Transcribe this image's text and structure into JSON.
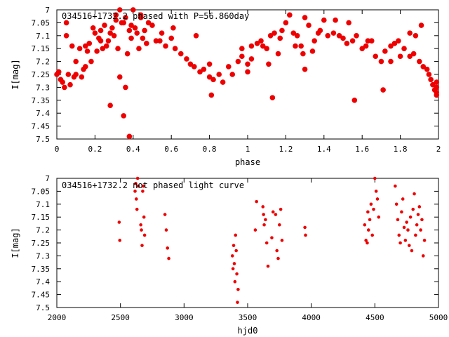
{
  "colors": {
    "points": "#ee0000",
    "axes": "#000000",
    "background": "#ffffff"
  },
  "chart_data": [
    {
      "type": "scatter",
      "title": "034516+1732.2 phased with P=56.860day",
      "xlabel": "phase",
      "ylabel": "I[mag]",
      "xlim": [
        0,
        2
      ],
      "ylim": [
        7,
        7.5
      ],
      "y_inverted": true,
      "grid": false,
      "xticks": [
        "0",
        "0.2",
        "0.4",
        "0.6",
        "0.8",
        "1",
        "1.2",
        "1.4",
        "1.6",
        "1.8",
        "2"
      ],
      "xtick_values": [
        0,
        0.2,
        0.4,
        0.6,
        0.8,
        1,
        1.2,
        1.4,
        1.6,
        1.8,
        2
      ],
      "yticks": [
        "7",
        "7.05",
        "7.1",
        "7.15",
        "7.2",
        "7.25",
        "7.3",
        "7.35",
        "7.4",
        "7.45",
        "7.5"
      ],
      "ytick_values": [
        7,
        7.05,
        7.1,
        7.15,
        7.2,
        7.25,
        7.3,
        7.35,
        7.4,
        7.45,
        7.5
      ],
      "x": [
        0.0,
        0.01,
        0.02,
        0.03,
        0.04,
        0.05,
        0.06,
        0.08,
        0.1,
        0.12,
        0.13,
        0.14,
        0.15,
        0.16,
        0.17,
        0.18,
        0.19,
        0.2,
        0.21,
        0.22,
        0.23,
        0.24,
        0.25,
        0.26,
        0.27,
        0.28,
        0.29,
        0.3,
        0.31,
        0.32,
        0.33,
        0.34,
        0.35,
        0.36,
        0.37,
        0.38,
        0.39,
        0.4,
        0.41,
        0.42,
        0.43,
        0.44,
        0.45,
        0.46,
        0.47,
        0.48,
        0.5,
        0.52,
        0.55,
        0.57,
        0.6,
        0.62,
        0.65,
        0.68,
        0.7,
        0.72,
        0.75,
        0.77,
        0.8,
        0.82,
        0.85,
        0.87,
        0.9,
        0.92,
        0.95,
        0.97,
        1.0,
        1.02,
        1.05,
        1.07,
        1.1,
        1.12,
        1.14,
        1.16,
        1.18,
        1.2,
        1.22,
        1.24,
        1.26,
        1.28,
        1.3,
        1.32,
        1.35,
        1.38,
        1.4,
        1.42,
        1.45,
        1.48,
        1.5,
        1.52,
        1.55,
        1.57,
        1.6,
        1.62,
        1.65,
        1.67,
        1.7,
        1.72,
        1.75,
        1.77,
        1.8,
        1.82,
        1.85,
        1.87,
        1.9,
        1.92,
        1.94,
        1.95,
        1.96,
        1.97,
        1.98,
        1.99,
        1.99,
        1.99,
        1.99,
        0.38,
        0.35,
        0.28,
        0.81,
        0.33,
        0.05,
        0.1,
        1.13,
        1.56,
        1.71,
        1.3,
        0.36,
        0.09,
        0.07,
        0.8,
        1.0,
        1.17,
        1.29,
        1.75,
        1.53,
        1.46,
        0.54,
        0.61,
        0.73,
        0.97,
        1.08,
        1.34,
        1.25,
        1.85,
        1.88,
        0.44,
        0.23,
        0.15,
        0.31,
        0.39,
        1.02,
        1.11,
        1.37,
        1.63,
        1.79,
        1.91
      ],
      "y": [
        7.25,
        7.24,
        7.27,
        7.28,
        7.3,
        7.1,
        7.25,
        7.14,
        7.25,
        7.15,
        7.26,
        7.23,
        7.22,
        7.16,
        7.13,
        7.2,
        7.07,
        7.09,
        7.16,
        7.11,
        7.08,
        7.15,
        7.06,
        7.14,
        7.12,
        7.09,
        7.07,
        7.1,
        7.04,
        7.15,
        7.0,
        7.05,
        7.05,
        7.03,
        7.17,
        7.08,
        7.11,
        7.0,
        7.07,
        7.09,
        7.15,
        7.02,
        7.11,
        7.08,
        7.13,
        7.05,
        7.06,
        7.12,
        7.09,
        7.14,
        7.11,
        7.15,
        7.17,
        7.19,
        7.21,
        7.22,
        7.24,
        7.23,
        7.26,
        7.27,
        7.25,
        7.28,
        7.22,
        7.25,
        7.2,
        7.18,
        7.21,
        7.19,
        7.13,
        7.12,
        7.15,
        7.1,
        7.09,
        7.17,
        7.08,
        7.05,
        7.02,
        7.09,
        7.1,
        7.14,
        7.03,
        7.06,
        7.12,
        7.08,
        7.04,
        7.1,
        7.09,
        7.1,
        7.11,
        7.13,
        7.12,
        7.1,
        7.15,
        7.14,
        7.12,
        7.18,
        7.2,
        7.16,
        7.14,
        7.13,
        7.18,
        7.15,
        7.18,
        7.17,
        7.2,
        7.22,
        7.23,
        7.25,
        7.27,
        7.29,
        7.31,
        7.32,
        7.33,
        7.3,
        7.28,
        7.49,
        7.41,
        7.37,
        7.33,
        7.26,
        7.05,
        7.2,
        7.34,
        7.35,
        7.31,
        7.23,
        7.3,
        7.26,
        7.29,
        7.21,
        7.24,
        7.11,
        7.17,
        7.2,
        7.05,
        7.04,
        7.12,
        7.07,
        7.1,
        7.15,
        7.14,
        7.16,
        7.14,
        7.09,
        7.1,
        7.03,
        7.12,
        7.14,
        7.02,
        7.06,
        7.14,
        7.21,
        7.09,
        7.12,
        7.12,
        7.06
      ]
    },
    {
      "type": "scatter",
      "title": "034516+1732.2 not phased light curve",
      "xlabel": "hjd0",
      "ylabel": "I[mag]",
      "xlim": [
        2000,
        5000
      ],
      "ylim": [
        7,
        7.5
      ],
      "y_inverted": true,
      "grid": false,
      "xticks": [
        "2000",
        "2500",
        "3000",
        "3500",
        "4000",
        "4500",
        "5000"
      ],
      "xtick_values": [
        2000,
        2500,
        3000,
        3500,
        4000,
        4500,
        5000
      ],
      "yticks": [
        "7",
        "7.05",
        "7.1",
        "7.15",
        "7.2",
        "7.25",
        "7.3",
        "7.35",
        "7.4",
        "7.45",
        "7.5"
      ],
      "ytick_values": [
        7,
        7.05,
        7.1,
        7.15,
        7.2,
        7.25,
        7.3,
        7.35,
        7.4,
        7.45,
        7.5
      ],
      "x": [
        2490,
        2495,
        2615,
        2620,
        2625,
        2630,
        2635,
        2640,
        2660,
        2665,
        2670,
        2675,
        2680,
        2685,
        2690,
        2850,
        2860,
        2870,
        2880,
        3380,
        3385,
        3390,
        3395,
        3400,
        3405,
        3410,
        3415,
        3420,
        3425,
        3560,
        3570,
        3620,
        3625,
        3630,
        3640,
        3650,
        3660,
        3690,
        3700,
        3720,
        3730,
        3740,
        3750,
        3760,
        3770,
        3950,
        3955,
        4420,
        4430,
        4440,
        4445,
        4450,
        4460,
        4470,
        4480,
        4490,
        4500,
        4510,
        4520,
        4530,
        4660,
        4670,
        4680,
        4690,
        4700,
        4710,
        4720,
        4730,
        4740,
        4750,
        4760,
        4770,
        4780,
        4790,
        4800,
        4810,
        4820,
        4830,
        4840,
        4850,
        4860,
        4870,
        4880,
        4890
      ],
      "y": [
        7.17,
        7.24,
        7.05,
        7.02,
        7.08,
        7.12,
        7.0,
        7.03,
        7.18,
        7.2,
        7.26,
        7.05,
        7.03,
        7.15,
        7.22,
        7.14,
        7.2,
        7.27,
        7.31,
        7.3,
        7.35,
        7.26,
        7.33,
        7.4,
        7.22,
        7.28,
        7.37,
        7.48,
        7.43,
        7.2,
        7.09,
        7.11,
        7.14,
        7.18,
        7.16,
        7.25,
        7.34,
        7.23,
        7.13,
        7.14,
        7.28,
        7.31,
        7.18,
        7.12,
        7.24,
        7.19,
        7.22,
        7.18,
        7.24,
        7.25,
        7.13,
        7.2,
        7.16,
        7.1,
        7.22,
        7.12,
        7.0,
        7.05,
        7.08,
        7.15,
        7.03,
        7.1,
        7.16,
        7.22,
        7.25,
        7.13,
        7.08,
        7.19,
        7.24,
        7.17,
        7.2,
        7.26,
        7.15,
        7.28,
        7.12,
        7.06,
        7.22,
        7.18,
        7.14,
        7.11,
        7.2,
        7.16,
        7.3,
        7.24
      ]
    }
  ]
}
